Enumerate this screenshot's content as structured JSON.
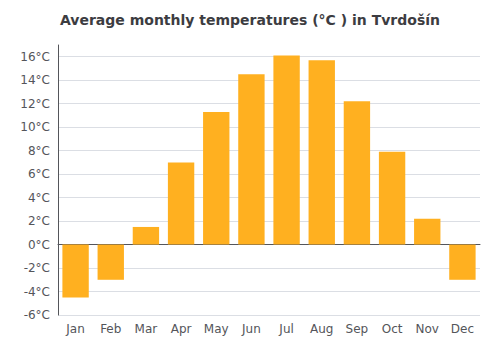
{
  "chart_data": {
    "type": "bar",
    "title": "Average monthly temperatures (°C ) in Tvrdošín",
    "categories": [
      "Jan",
      "Feb",
      "Mar",
      "Apr",
      "May",
      "Jun",
      "Jul",
      "Aug",
      "Sep",
      "Oct",
      "Nov",
      "Dec"
    ],
    "values": [
      -4.5,
      -3.0,
      1.5,
      7.0,
      11.3,
      14.5,
      16.1,
      15.7,
      12.2,
      7.9,
      2.2,
      -3.0
    ],
    "color": "#FFB020",
    "ylim": [
      -6,
      17
    ],
    "yticks": [
      {
        "value": -6,
        "label": "-6°C"
      },
      {
        "value": -4,
        "label": "-4°C"
      },
      {
        "value": -2,
        "label": "-2°C"
      },
      {
        "value": 0,
        "label": "0°C"
      },
      {
        "value": 2,
        "label": "2°C"
      },
      {
        "value": 4,
        "label": "4°C"
      },
      {
        "value": 6,
        "label": "6°C"
      },
      {
        "value": 8,
        "label": "8°C"
      },
      {
        "value": 10,
        "label": "10°C"
      },
      {
        "value": 12,
        "label": "12°C"
      },
      {
        "value": 14,
        "label": "14°C"
      },
      {
        "value": 16,
        "label": "16°C"
      }
    ],
    "grid": true
  }
}
